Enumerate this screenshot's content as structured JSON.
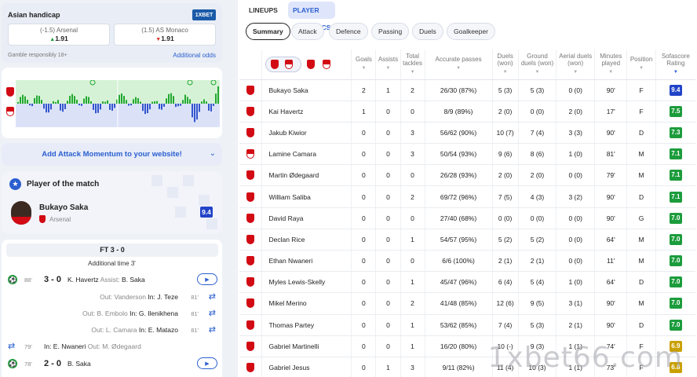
{
  "odds": {
    "title": "Asian handicap",
    "bookmaker": "1XBET",
    "home": {
      "label": "(-1.5) Arsenal",
      "value": "1.91",
      "trend": "▲"
    },
    "away": {
      "label": "(1.5) AS Monaco",
      "value": "1.91",
      "trend": "▼"
    },
    "disclaimer": "Gamble responsibly 18+",
    "more_link": "Additional odds"
  },
  "momentum": {
    "home_team": "Arsenal",
    "away_team": "AS Monaco",
    "colors": {
      "home": "#22a830",
      "away": "#3355cc",
      "home_bg": "#d6f2d6",
      "away_bg": "#dbe2f8"
    }
  },
  "attack_momentum_link": "Add Attack Momentum to your website!",
  "potm": {
    "title": "Player of the match",
    "name": "Bukayo Saka",
    "team": "Arsenal",
    "rating": "9.4"
  },
  "events": {
    "final": "FT 3 - 0",
    "added_time": "Additional time 3'",
    "goal1": {
      "minute": "88'",
      "score": "3 - 0",
      "scorer": "K. Havertz",
      "assist_label": "Assist:",
      "assist": "B. Saka"
    },
    "subs": [
      {
        "out": "Out: Vanderson",
        "in": "In: J. Teze",
        "minute": "81'"
      },
      {
        "out": "Out: B. Embolo",
        "in": "In: G. Ilenikhena",
        "minute": "81'"
      },
      {
        "out": "Out: L. Camara",
        "in": "In: E. Matazo",
        "minute": "81'"
      }
    ],
    "sub_home": {
      "minute": "79'",
      "in": "In: E. Nwaneri",
      "out": "Out: M. Ødegaard"
    },
    "goal2": {
      "minute": "78'",
      "score": "2 - 0",
      "scorer": "B. Saka"
    }
  },
  "tabs": {
    "top": [
      "LINEUPS",
      "PLAYER STATISTICS"
    ],
    "active_top": "PLAYER STATISTICS",
    "sub": [
      "Summary",
      "Attack",
      "Defence",
      "Passing",
      "Duels",
      "Goalkeeper"
    ],
    "active_sub": "Summary"
  },
  "table": {
    "headers": {
      "goals": "Goals",
      "assists": "Assists",
      "tackles": "Total tackles",
      "passes": "Accurate passes",
      "duels": "Duels (won)",
      "ground": "Ground duels (won)",
      "aerial": "Aerial duels (won)",
      "minutes": "Minutes played",
      "position": "Position",
      "rating": "Sofascore Rating"
    },
    "rows": [
      {
        "team": "ars",
        "name": "Bukayo Saka",
        "goals": "2",
        "assists": "1",
        "tackles": "2",
        "passes": "26/30 (87%)",
        "duels": "5 (3)",
        "ground": "5 (3)",
        "aerial": "0 (0)",
        "minutes": "90'",
        "position": "F",
        "rating": "9.4",
        "rclass": "r-blue"
      },
      {
        "team": "ars",
        "name": "Kai Havertz",
        "goals": "1",
        "assists": "0",
        "tackles": "0",
        "passes": "8/9 (89%)",
        "duels": "2 (0)",
        "ground": "0 (0)",
        "aerial": "2 (0)",
        "minutes": "17'",
        "position": "F",
        "rating": "7.5",
        "rclass": "r-green"
      },
      {
        "team": "ars",
        "name": "Jakub Kiwior",
        "goals": "0",
        "assists": "0",
        "tackles": "3",
        "passes": "56/62 (90%)",
        "duels": "10 (7)",
        "ground": "7 (4)",
        "aerial": "3 (3)",
        "minutes": "90'",
        "position": "D",
        "rating": "7.3",
        "rclass": "r-green"
      },
      {
        "team": "mon",
        "name": "Lamine Camara",
        "goals": "0",
        "assists": "0",
        "tackles": "3",
        "passes": "50/54 (93%)",
        "duels": "9 (6)",
        "ground": "8 (6)",
        "aerial": "1 (0)",
        "minutes": "81'",
        "position": "M",
        "rating": "7.1",
        "rclass": "r-green"
      },
      {
        "team": "ars",
        "name": "Martin Ødegaard",
        "goals": "0",
        "assists": "0",
        "tackles": "0",
        "passes": "26/28 (93%)",
        "duels": "2 (0)",
        "ground": "2 (0)",
        "aerial": "0 (0)",
        "minutes": "79'",
        "position": "M",
        "rating": "7.1",
        "rclass": "r-green"
      },
      {
        "team": "ars",
        "name": "William Saliba",
        "goals": "0",
        "assists": "0",
        "tackles": "2",
        "passes": "69/72 (96%)",
        "duels": "7 (5)",
        "ground": "4 (3)",
        "aerial": "3 (2)",
        "minutes": "90'",
        "position": "D",
        "rating": "7.1",
        "rclass": "r-green"
      },
      {
        "team": "ars",
        "name": "David Raya",
        "goals": "0",
        "assists": "0",
        "tackles": "0",
        "passes": "27/40 (68%)",
        "duels": "0 (0)",
        "ground": "0 (0)",
        "aerial": "0 (0)",
        "minutes": "90'",
        "position": "G",
        "rating": "7.0",
        "rclass": "r-green"
      },
      {
        "team": "ars",
        "name": "Declan Rice",
        "goals": "0",
        "assists": "0",
        "tackles": "1",
        "passes": "54/57 (95%)",
        "duels": "5 (2)",
        "ground": "5 (2)",
        "aerial": "0 (0)",
        "minutes": "64'",
        "position": "M",
        "rating": "7.0",
        "rclass": "r-green"
      },
      {
        "team": "ars",
        "name": "Ethan Nwaneri",
        "goals": "0",
        "assists": "0",
        "tackles": "0",
        "passes": "6/6 (100%)",
        "duels": "2 (1)",
        "ground": "2 (1)",
        "aerial": "0 (0)",
        "minutes": "11'",
        "position": "M",
        "rating": "7.0",
        "rclass": "r-green"
      },
      {
        "team": "ars",
        "name": "Myles Lewis-Skelly",
        "goals": "0",
        "assists": "0",
        "tackles": "1",
        "passes": "45/47 (96%)",
        "duels": "6 (4)",
        "ground": "5 (4)",
        "aerial": "1 (0)",
        "minutes": "64'",
        "position": "D",
        "rating": "7.0",
        "rclass": "r-green"
      },
      {
        "team": "ars",
        "name": "Mikel Merino",
        "goals": "0",
        "assists": "0",
        "tackles": "2",
        "passes": "41/48 (85%)",
        "duels": "12 (6)",
        "ground": "9 (5)",
        "aerial": "3 (1)",
        "minutes": "90'",
        "position": "M",
        "rating": "7.0",
        "rclass": "r-green"
      },
      {
        "team": "ars",
        "name": "Thomas Partey",
        "goals": "0",
        "assists": "0",
        "tackles": "1",
        "passes": "53/62 (85%)",
        "duels": "7 (4)",
        "ground": "5 (3)",
        "aerial": "2 (1)",
        "minutes": "90'",
        "position": "D",
        "rating": "7.0",
        "rclass": "r-green"
      },
      {
        "team": "ars",
        "name": "Gabriel Martinelli",
        "goals": "0",
        "assists": "0",
        "tackles": "1",
        "passes": "16/20 (80%)",
        "duels": "10 (-)",
        "ground": "9 (3)",
        "aerial": "1 (1)",
        "minutes": "74'",
        "position": "F",
        "rating": "6.9",
        "rclass": "r-gold"
      },
      {
        "team": "ars",
        "name": "Gabriel Jesus",
        "goals": "0",
        "assists": "1",
        "tackles": "3",
        "passes": "9/11 (82%)",
        "duels": "11 (4)",
        "ground": "10 (3)",
        "aerial": "1 (1)",
        "minutes": "73'",
        "position": "F",
        "rating": "6.8",
        "rclass": "r-gold"
      }
    ]
  },
  "watermark": "1xbet66.com"
}
